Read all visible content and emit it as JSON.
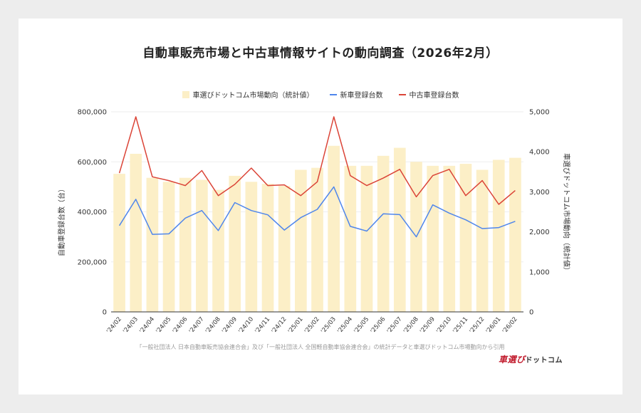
{
  "title": "自動車販売市場と中古車情報サイトの動向調査（2026年2月）",
  "legend": {
    "bar": "車選びドットコム市場動向（統計値）",
    "new": "新車登録台数",
    "used": "中古車登録台数"
  },
  "ylabel_left": "自動車登録台数（台）",
  "ylabel_right": "車選びドットコム市場動向（統計値）",
  "source": "「一般社団法人 日本自動車販売協会連合会」及び「一般社団法人 全国軽自動車協会連合会」の統計データと車選びドットコム市場動向から引用",
  "brand": "車選び",
  "brand_sub": "ドットコム",
  "colors": {
    "bar": "#fcefc7",
    "new": "#4f86ec",
    "used": "#db4437"
  },
  "chart_data": {
    "type": "bar+line",
    "categories": [
      "'24/02",
      "'24/03",
      "'24/04",
      "'24/05",
      "'24/06",
      "'24/07",
      "'24/08",
      "'24/09",
      "'24/10",
      "'24/11",
      "'24/12",
      "'25/01",
      "'25/02",
      "'25/03",
      "'25/04",
      "'25/05",
      "'25/06",
      "'25/07",
      "'25/08",
      "'25/09",
      "'25/10",
      "'25/11",
      "'25/12",
      "'26/01",
      "'26/02"
    ],
    "left_axis": {
      "ylim": [
        0,
        800000
      ],
      "ticks": [
        "0",
        "200,000",
        "400,000",
        "600,000",
        "800,000"
      ]
    },
    "right_axis": {
      "ylim": [
        0,
        5000
      ],
      "ticks": [
        "0",
        "1,000",
        "2,000",
        "3,000",
        "4,000",
        "5,000"
      ]
    },
    "series": [
      {
        "name": "車選びドットコム市場動向（統計値）",
        "type": "bar",
        "axis": "right",
        "values": [
          3450,
          3950,
          3350,
          3250,
          3350,
          3300,
          3050,
          3400,
          3250,
          3200,
          3150,
          3550,
          3600,
          4150,
          3650,
          3650,
          3900,
          4100,
          3750,
          3650,
          3650,
          3700,
          3550,
          3800,
          3850
        ]
      },
      {
        "name": "新車登録台数",
        "type": "line",
        "axis": "left",
        "values": [
          345000,
          450000,
          310000,
          312000,
          375000,
          405000,
          325000,
          437000,
          405000,
          388000,
          327000,
          377000,
          410000,
          500000,
          342000,
          323000,
          392000,
          389000,
          300000,
          428000,
          395000,
          368000,
          333000,
          337000,
          362000
        ]
      },
      {
        "name": "中古車登録台数",
        "type": "line",
        "axis": "left",
        "values": [
          555000,
          780000,
          540000,
          525000,
          505000,
          565000,
          465000,
          510000,
          575000,
          505000,
          508000,
          465000,
          520000,
          780000,
          545000,
          505000,
          535000,
          570000,
          460000,
          545000,
          570000,
          465000,
          525000,
          430000,
          485000
        ]
      }
    ]
  }
}
